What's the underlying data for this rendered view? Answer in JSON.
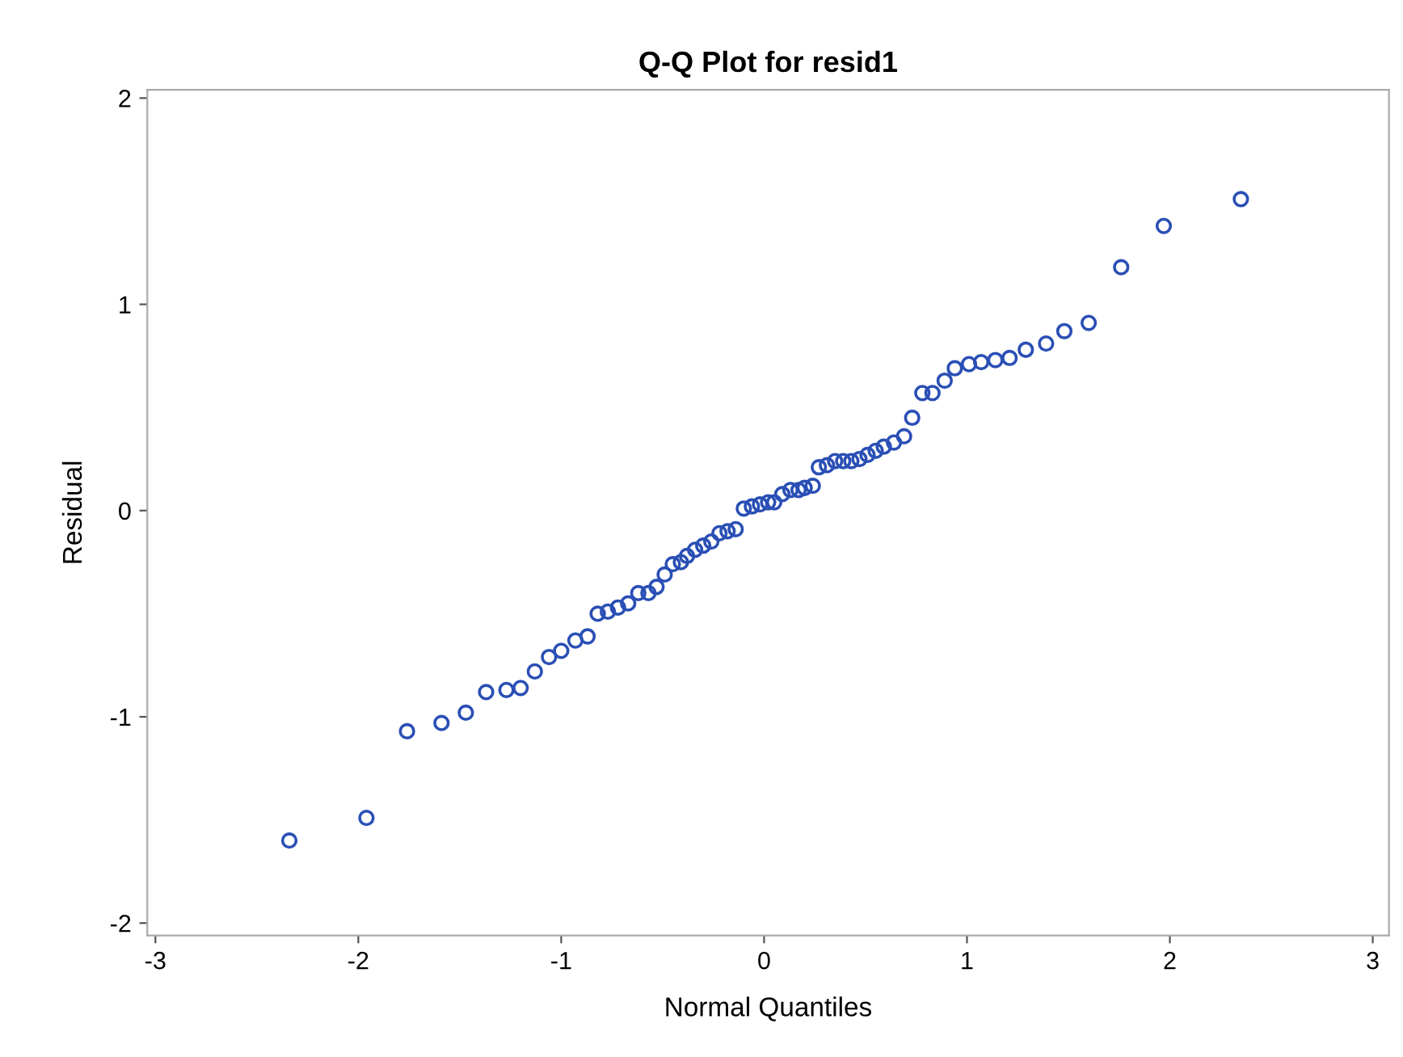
{
  "chart_data": {
    "type": "scatter",
    "title": "Q-Q Plot for resid1",
    "xlabel": "Normal Quantiles",
    "ylabel": "Residual",
    "x": [
      -2.34,
      -1.96,
      -1.76,
      -1.59,
      -1.47,
      -1.37,
      -1.27,
      -1.2,
      -1.13,
      -1.06,
      -1.0,
      -0.93,
      -0.87,
      -0.82,
      -0.77,
      -0.72,
      -0.67,
      -0.62,
      -0.57,
      -0.53,
      -0.49,
      -0.45,
      -0.41,
      -0.38,
      -0.34,
      -0.3,
      -0.26,
      -0.22,
      -0.18,
      -0.14,
      -0.1,
      -0.06,
      -0.02,
      0.02,
      0.05,
      0.09,
      0.13,
      0.17,
      0.2,
      0.24,
      0.27,
      0.31,
      0.35,
      0.39,
      0.43,
      0.47,
      0.51,
      0.55,
      0.59,
      0.64,
      0.69,
      0.73,
      0.78,
      0.83,
      0.89,
      0.94,
      1.01,
      1.07,
      1.14,
      1.21,
      1.29,
      1.39,
      1.48,
      1.6,
      1.76,
      1.97,
      2.35
    ],
    "series": [
      {
        "color": "#2a4fb5",
        "values": [
          -1.6,
          -1.49,
          -1.07,
          -1.03,
          -0.98,
          -0.88,
          -0.87,
          -0.86,
          -0.78,
          -0.71,
          -0.68,
          -0.63,
          -0.61,
          -0.5,
          -0.49,
          -0.47,
          -0.45,
          -0.4,
          -0.4,
          -0.37,
          -0.31,
          -0.26,
          -0.25,
          -0.22,
          -0.19,
          -0.17,
          -0.15,
          -0.11,
          -0.1,
          -0.09,
          0.01,
          0.02,
          0.03,
          0.04,
          0.04,
          0.08,
          0.1,
          0.1,
          0.11,
          0.12,
          0.21,
          0.22,
          0.24,
          0.24,
          0.24,
          0.25,
          0.27,
          0.29,
          0.31,
          0.33,
          0.36,
          0.45,
          0.57,
          0.57,
          0.63,
          0.69,
          0.71,
          0.72,
          0.73,
          0.74,
          0.78,
          0.81,
          0.87,
          0.91,
          1.18,
          1.38,
          1.51
        ]
      }
    ],
    "xlim": [
      -3.04,
      3.08
    ],
    "ylim": [
      -2.06,
      2.04
    ],
    "xticks": [
      {
        "value": -3,
        "label": "-3"
      },
      {
        "value": -2,
        "label": "-2"
      },
      {
        "value": -1,
        "label": "-1"
      },
      0,
      1,
      2,
      3
    ],
    "yticks": [
      {
        "value": -2,
        "label": "-2"
      },
      {
        "value": -1,
        "label": "-1"
      },
      0,
      1,
      2
    ],
    "marker": "circle",
    "grid": false,
    "legend": false
  }
}
